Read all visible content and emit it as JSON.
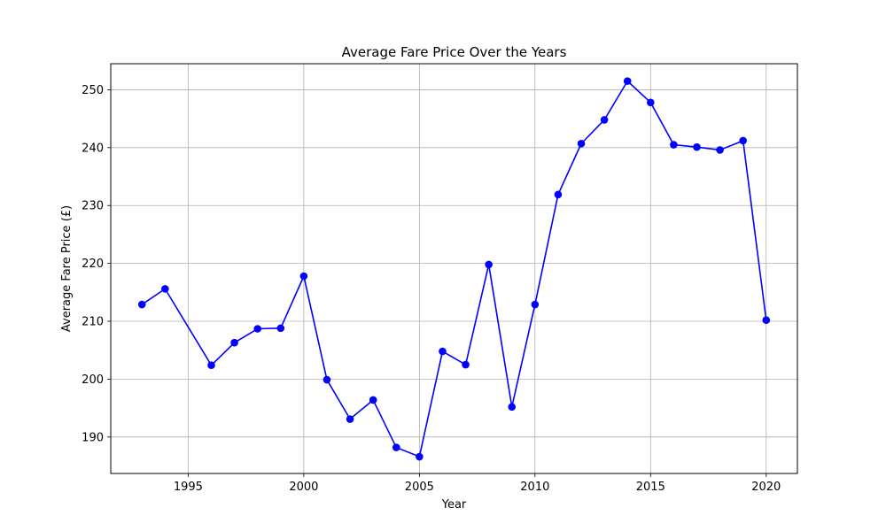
{
  "chart_data": {
    "type": "line",
    "title": "Average Fare Price Over the Years",
    "xlabel": "Year",
    "ylabel": "Average Fare Price (£)",
    "xlim": [
      1991.65,
      2021.35
    ],
    "ylim": [
      183.7,
      254.5
    ],
    "x_ticks": [
      1995,
      2000,
      2005,
      2010,
      2015,
      2020
    ],
    "y_ticks": [
      190,
      200,
      210,
      220,
      230,
      240,
      250
    ],
    "grid": true,
    "series": [
      {
        "color": "#0000ff",
        "marker": "circle",
        "x": [
          1993,
          1994,
          1996,
          1997,
          1998,
          1999,
          2000,
          2001,
          2002,
          2003,
          2004,
          2005,
          2006,
          2007,
          2008,
          2009,
          2010,
          2011,
          2012,
          2013,
          2014,
          2015,
          2016,
          2017,
          2018,
          2019,
          2020
        ],
        "y": [
          212.9,
          215.6,
          202.4,
          206.3,
          208.7,
          208.8,
          217.8,
          199.9,
          193.1,
          196.4,
          188.2,
          186.6,
          204.8,
          202.5,
          219.8,
          195.2,
          212.9,
          231.9,
          240.7,
          244.8,
          251.5,
          247.8,
          240.5,
          240.1,
          239.6,
          241.2,
          210.2
        ]
      }
    ]
  }
}
